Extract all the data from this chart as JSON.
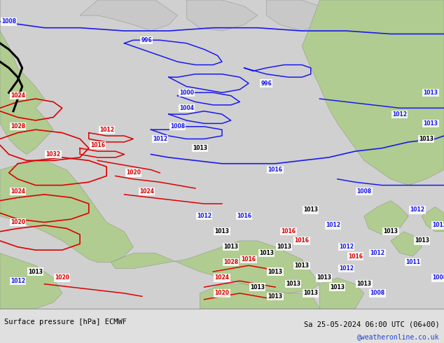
{
  "title_left": "Surface pressure [hPa] ECMWF",
  "title_right": "Sa 25-05-2024 06:00 UTC (06+00)",
  "credit": "@weatheronline.co.uk",
  "bg_color": "#d0d0d0",
  "land_color": "#b0cc90",
  "arctic_color": "#c8c8c8",
  "footer_bg": "#e0e0e0",
  "isobar_blue": "#1a1aee",
  "isobar_red": "#dd0000",
  "isobar_black": "#000000",
  "footer_sep_color": "#999999"
}
